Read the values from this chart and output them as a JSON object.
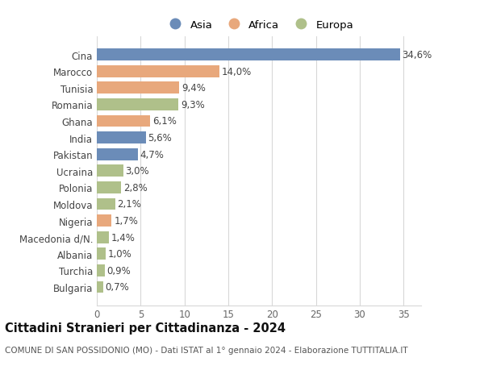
{
  "countries": [
    "Bulgaria",
    "Turchia",
    "Albania",
    "Macedonia d/N.",
    "Nigeria",
    "Moldova",
    "Polonia",
    "Ucraina",
    "Pakistan",
    "India",
    "Ghana",
    "Romania",
    "Tunisia",
    "Marocco",
    "Cina"
  ],
  "values": [
    0.7,
    0.9,
    1.0,
    1.4,
    1.7,
    2.1,
    2.8,
    3.0,
    4.7,
    5.6,
    6.1,
    9.3,
    9.4,
    14.0,
    34.6
  ],
  "labels": [
    "0,7%",
    "0,9%",
    "1,0%",
    "1,4%",
    "1,7%",
    "2,1%",
    "2,8%",
    "3,0%",
    "4,7%",
    "5,6%",
    "6,1%",
    "9,3%",
    "9,4%",
    "14,0%",
    "34,6%"
  ],
  "continents": [
    "Europa",
    "Europa",
    "Europa",
    "Europa",
    "Africa",
    "Europa",
    "Europa",
    "Europa",
    "Asia",
    "Asia",
    "Africa",
    "Europa",
    "Africa",
    "Africa",
    "Asia"
  ],
  "colors": {
    "Asia": "#6b8cb8",
    "Africa": "#e8a87c",
    "Europa": "#afc08a"
  },
  "title": "Cittadini Stranieri per Cittadinanza - 2024",
  "subtitle": "COMUNE DI SAN POSSIDONIO (MO) - Dati ISTAT al 1° gennaio 2024 - Elaborazione TUTTITALIA.IT",
  "xlim": [
    0,
    37
  ],
  "xticks": [
    0,
    5,
    10,
    15,
    20,
    25,
    30,
    35
  ],
  "background_color": "#ffffff",
  "grid_color": "#d8d8d8",
  "bar_height": 0.72,
  "label_fontsize": 8.5,
  "ytick_fontsize": 8.5,
  "xtick_fontsize": 8.5,
  "title_fontsize": 10.5,
  "subtitle_fontsize": 7.5,
  "legend_fontsize": 9.5
}
